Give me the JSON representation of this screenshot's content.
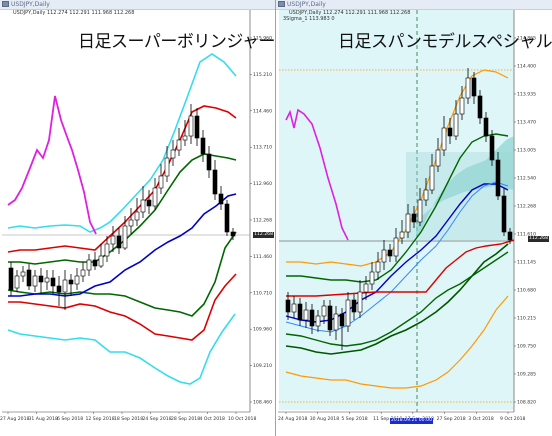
{
  "left": {
    "window_title": "USDJPY,Daily",
    "ohlc": "USDJPY,Daily  112.274 112.291 111.968 112.268",
    "title": "日足スーパーボリンジャー",
    "price_ticks": [
      "115.960",
      "115.210",
      "114.460",
      "113.710",
      "112.960",
      "112.268",
      "111.460",
      "110.710",
      "109.960",
      "109.210",
      "108.460"
    ],
    "date_ticks": [
      "27 Aug 2018",
      "31 Aug 2018",
      "6 Sep 2018",
      "12 Sep 2018",
      "18 Sep 2018",
      "24 Sep 2018",
      "28 Sep 2018",
      "4 Oct 2018",
      "10 Oct 2018"
    ],
    "current_price": "112.268"
  },
  "right": {
    "window_title": "USDJPY,Daily",
    "ohlc": "USDJPY,Daily  112.274 112.291 111.968 112.268",
    "sub": "3Sigma_1 113.983 0",
    "title": "日足スパンモデルスペシャル",
    "price_ticks": [
      "114.865",
      "114.400",
      "113.935",
      "113.470",
      "113.005",
      "112.540",
      "112.268",
      "111.610",
      "111.145",
      "110.680",
      "110.215",
      "109.750",
      "109.285",
      "108.820"
    ],
    "date_ticks": [
      "24 Aug 2018",
      "30 Aug 2018",
      "5 Sep 2018",
      "11 Sep 2018",
      "17 Sep 2018",
      "27 Sep 2018",
      "3 Oct 2018",
      "9 Oct 2018"
    ],
    "time_marker": "2018.09.21 00:00",
    "current_price": "112.268"
  },
  "colors": {
    "bull": "#ffffff",
    "bear": "#000000",
    "cyan": "#33ddee",
    "red": "#dd0000",
    "green": "#006600",
    "blue": "#0000cc",
    "magenta": "#e020e0",
    "orange": "#ff9900",
    "right_bg": "#dff6f8"
  }
}
